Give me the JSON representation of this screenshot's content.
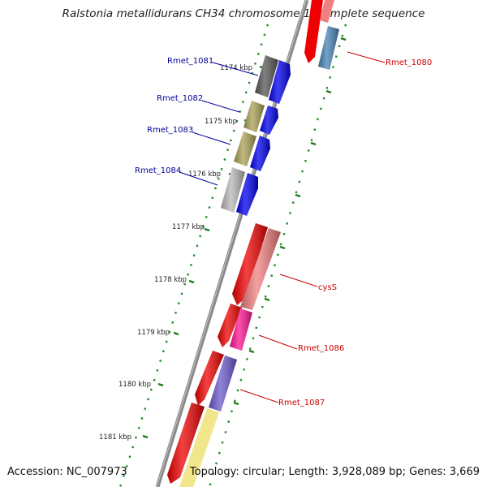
{
  "title": "Ralstonia metallidurans CH34 chromosome 1, complete sequence",
  "accession": "Accession: NC_007973",
  "topology": "Topology: circular; Length: 3,928,089 bp; Genes: 3,669",
  "ticks": [
    "1174 kbp",
    "1175 kbp",
    "1176 kbp",
    "1177 kbp",
    "1178 kbp",
    "1179 kbp",
    "1180 kbp",
    "1181 kbp"
  ],
  "genes": [
    {
      "label": "Rmet_1081",
      "strand": "reverse",
      "color": "#0000ee",
      "cog_color": "#555555"
    },
    {
      "label": "Rmet_1082",
      "strand": "reverse",
      "color": "#0000ee",
      "cog_color": "#aaa055"
    },
    {
      "label": "Rmet_1083",
      "strand": "reverse",
      "color": "#0000ee",
      "cog_color": "#aaa055"
    },
    {
      "label": "Rmet_1084",
      "strand": "reverse",
      "color": "#0000ee",
      "cog_color": "#b8b8b8"
    },
    {
      "label": "Rmet_1080",
      "strand": "forward",
      "color": "#ee0000",
      "cog_color": "#4682b4"
    },
    {
      "label": "cysS",
      "strand": "forward",
      "color": "#ee0000",
      "cog_color": "#f08080"
    },
    {
      "label": "Rmet_1086",
      "strand": "forward",
      "color": "#ee0000",
      "cog_color": "#ff1493"
    },
    {
      "label": "Rmet_1087",
      "strand": "forward",
      "color": "#ee0000",
      "cog_color": "#6a5acd"
    }
  ],
  "colors": {
    "forward_label": "#cc0000",
    "reverse_label": "#000099",
    "backbone": "#888888",
    "tick_dots": "#228b22"
  }
}
